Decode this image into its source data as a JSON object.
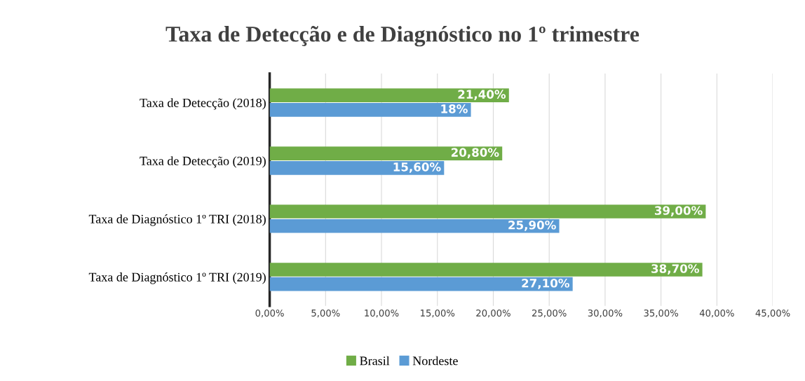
{
  "chart_data": {
    "type": "bar",
    "orientation": "horizontal",
    "title": "Taxa de Detecção e de Diagnóstico no 1º trimestre",
    "categories": [
      "Taxa de Detecção (2018)",
      "Taxa de Detecção (2019)",
      "Taxa de Diagnóstico 1º TRI (2018)",
      "Taxa de Diagnóstico 1º TRI (2019)"
    ],
    "series": [
      {
        "name": "Brasil",
        "color": "#70ad47",
        "values": [
          21.4,
          20.8,
          39.0,
          38.7
        ],
        "value_labels": [
          "21,40%",
          "20,80%",
          "39,00%",
          "38,70%"
        ]
      },
      {
        "name": "Nordeste",
        "color": "#5b9bd5",
        "values": [
          18,
          15.6,
          25.9,
          27.1
        ],
        "value_labels": [
          "18%",
          "15,60%",
          "25,90%",
          "27,10%"
        ]
      }
    ],
    "xlim": [
      0,
      45
    ],
    "xticks": [
      {
        "value": 0,
        "label": "0,00%"
      },
      {
        "value": 5,
        "label": "5,00%"
      },
      {
        "value": 10,
        "label": "10,00%"
      },
      {
        "value": 15,
        "label": "15,00%"
      },
      {
        "value": 20,
        "label": "20,00%"
      },
      {
        "value": 25,
        "label": "25,00%"
      },
      {
        "value": 30,
        "label": "30,00%"
      },
      {
        "value": 35,
        "label": "35,00%"
      },
      {
        "value": 40,
        "label": "40,00%"
      },
      {
        "value": 45,
        "label": "45,00%"
      }
    ],
    "grid": "x",
    "legend": "bottom"
  }
}
